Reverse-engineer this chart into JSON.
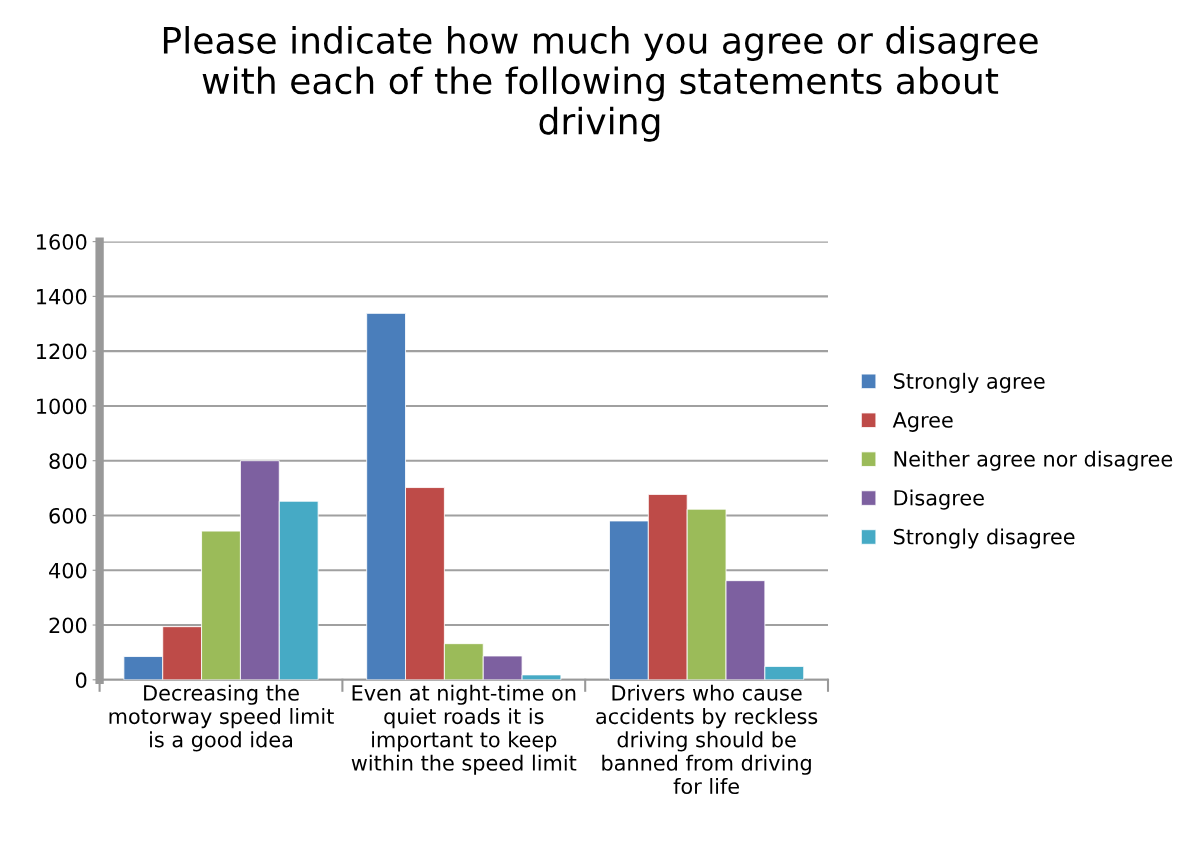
{
  "chart_data": {
    "type": "bar",
    "title": "Please indicate how much you agree or disagree\nwith each of the following statements about\ndriving",
    "categories": [
      "Decreasing the\nmotorway speed limit\nis a good idea",
      "Even at night-time on\nquiet roads it is\nimportant to keep\nwithin the speed limit",
      "Drivers who cause\naccidents by reckless\ndriving should be\nbanned from driving\nfor life"
    ],
    "series": [
      {
        "name": "Strongly agree",
        "color": "#4a7ebb",
        "values": [
          85,
          1338,
          580
        ]
      },
      {
        "name": "Agree",
        "color": "#be4b48",
        "values": [
          194,
          702,
          677
        ]
      },
      {
        "name": "Neither agree nor disagree",
        "color": "#9bbb59",
        "values": [
          543,
          132,
          623
        ]
      },
      {
        "name": "Disagree",
        "color": "#7d60a0",
        "values": [
          800,
          87,
          362
        ]
      },
      {
        "name": "Strongly disagree",
        "color": "#46aac5",
        "values": [
          652,
          18,
          49
        ]
      }
    ],
    "ylim": [
      0,
      1600
    ],
    "yticks": [
      0,
      200,
      400,
      600,
      800,
      1000,
      1200,
      1400,
      1600
    ],
    "grid": "y",
    "legend": "right"
  }
}
